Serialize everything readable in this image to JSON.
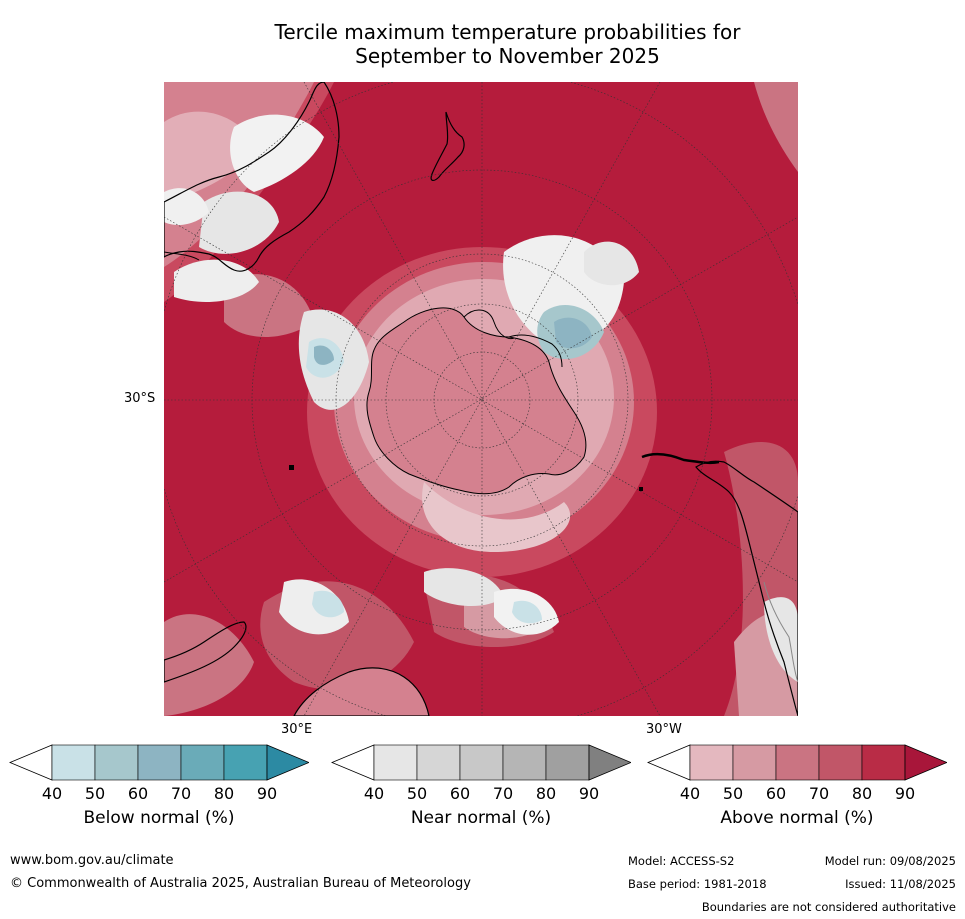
{
  "title": {
    "line1": "Tercile maximum temperature probabilities for",
    "line2": "September to November 2025"
  },
  "map": {
    "projection": "south-polar-stereographic",
    "labels": {
      "lat_30s": "30°S",
      "lon_30e": "30°E",
      "lon_30w": "30°W"
    },
    "colors": {
      "ocean_dominant": "#b51c3c",
      "land_outline": "#000000",
      "graticule": "#333333"
    }
  },
  "colorbars": [
    {
      "id": "below",
      "label": "Below normal (%)",
      "ticks": [
        "40",
        "50",
        "60",
        "70",
        "80",
        "90"
      ],
      "colors": [
        "#ffffff",
        "#c9e1e7",
        "#a6c7cc",
        "#8db4c2",
        "#6aabb8",
        "#47a2b2",
        "#2c8aa3"
      ]
    },
    {
      "id": "near",
      "label": "Near normal (%)",
      "ticks": [
        "40",
        "50",
        "60",
        "70",
        "80",
        "90"
      ],
      "colors": [
        "#ffffff",
        "#e6e6e6",
        "#d6d6d6",
        "#c8c8c8",
        "#b5b5b5",
        "#a0a0a0",
        "#808080"
      ]
    },
    {
      "id": "above",
      "label": "Above normal (%)",
      "ticks": [
        "40",
        "50",
        "60",
        "70",
        "80",
        "90"
      ],
      "colors": [
        "#ffffff",
        "#e4b8bf",
        "#d69aa3",
        "#ca7482",
        "#c15668",
        "#b92c46",
        "#a8163a"
      ]
    }
  ],
  "footer": {
    "url": "www.bom.gov.au/climate",
    "copyright": "© Commonwealth of Australia 2025, Australian Bureau of Meteorology",
    "model": "Model: ACCESS-S2",
    "model_run": "Model run: 09/08/2025",
    "base_period": "Base period: 1981-2018",
    "issued": "Issued: 11/08/2025",
    "disclaimer": "Boundaries are not considered authoritative"
  }
}
